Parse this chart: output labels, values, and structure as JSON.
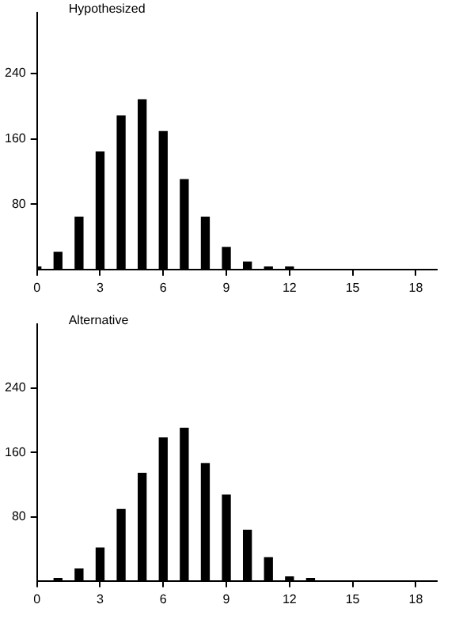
{
  "chart_data": [
    {
      "type": "bar",
      "title": "Hypothesized",
      "x": [
        0,
        1,
        2,
        3,
        4,
        5,
        6,
        7,
        8,
        9,
        10,
        11,
        12
      ],
      "values": [
        3,
        21,
        64,
        144,
        188,
        208,
        169,
        110,
        64,
        27,
        9,
        3,
        3
      ],
      "color": "#000000",
      "xlim": [
        0,
        19
      ],
      "xticks": [
        0,
        3,
        6,
        9,
        12,
        15,
        18
      ],
      "ylim": [
        0,
        315
      ],
      "yticks": [
        80,
        160,
        240
      ],
      "grid": false,
      "legend": false
    },
    {
      "type": "bar",
      "title": "Alternative",
      "x": [
        1,
        2,
        3,
        4,
        5,
        6,
        7,
        8,
        9,
        10,
        11,
        12,
        13
      ],
      "values": [
        3,
        15,
        41,
        89,
        134,
        178,
        190,
        146,
        107,
        63,
        29,
        5,
        3
      ],
      "color": "#000000",
      "xlim": [
        0,
        19
      ],
      "xticks": [
        0,
        3,
        6,
        9,
        12,
        15,
        18
      ],
      "ylim": [
        0,
        320
      ],
      "yticks": [
        80,
        160,
        240
      ],
      "grid": false,
      "legend": false
    }
  ]
}
